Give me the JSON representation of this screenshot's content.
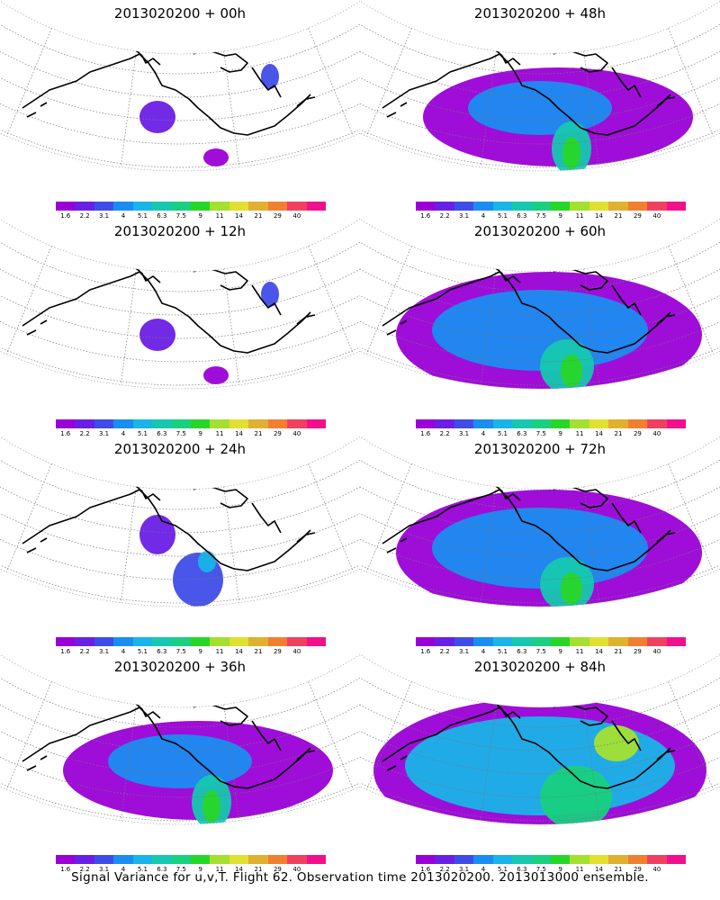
{
  "caption": "Signal Variance for u,v,T. Flight 62. Observation time 2013020200. 2013013000 ensemble.",
  "colorbar": {
    "labels": [
      "1.6",
      "2.2",
      "3.1",
      "4",
      "5.1",
      "6.3",
      "7.5",
      "9",
      "11",
      "14",
      "21",
      "29",
      "40"
    ],
    "colors": [
      "#9a00d6",
      "#6a1fe6",
      "#3f4de8",
      "#1a8df0",
      "#19b4e8",
      "#16c8b0",
      "#18d080",
      "#28d628",
      "#a4e030",
      "#e0e030",
      "#e0b030",
      "#f08030",
      "#f04060",
      "#f0108c"
    ]
  },
  "panels": [
    {
      "title": "2013020200 + 00h",
      "level": 0
    },
    {
      "title": "2013020200 + 48h",
      "level": 2
    },
    {
      "title": "2013020200 + 12h",
      "level": 0
    },
    {
      "title": "2013020200 + 60h",
      "level": 3
    },
    {
      "title": "2013020200 + 24h",
      "level": 1
    },
    {
      "title": "2013020200 + 72h",
      "level": 3
    },
    {
      "title": "2013020200 + 36h",
      "level": 2
    },
    {
      "title": "2013020200 + 84h",
      "level": 4
    }
  ]
}
